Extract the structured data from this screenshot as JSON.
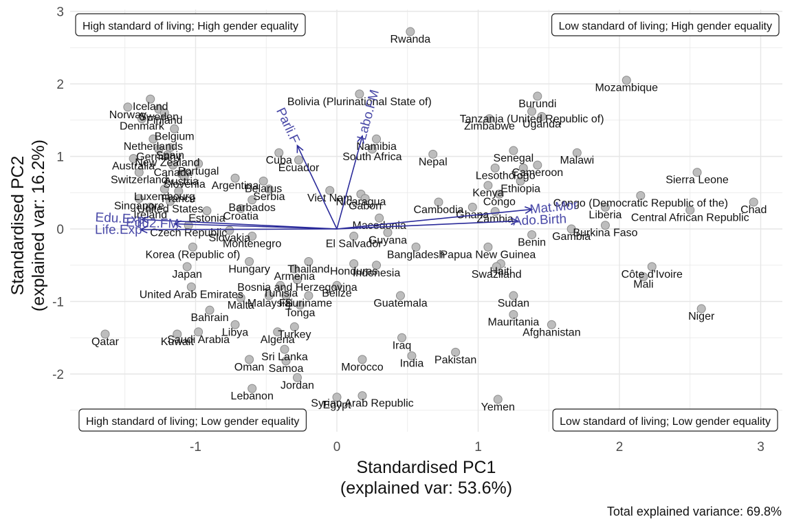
{
  "chart_data": {
    "type": "scatter",
    "subtype": "biplot",
    "xlabel": [
      "Standardised PC1",
      "(explained var: 53.6%)"
    ],
    "ylabel": [
      "Standardised PC2",
      "(explained var: 16.2%)"
    ],
    "caption": "Total explained variance: 69.8%",
    "xlim": [
      -1.9,
      3.15
    ],
    "ylim": [
      -2.78,
      3.0
    ],
    "x_ticks": [
      -1,
      0,
      1,
      2,
      3
    ],
    "y_ticks": [
      -2,
      -1,
      0,
      1,
      2,
      3
    ],
    "x_tick_labels": [
      "-1",
      "0",
      "1",
      "2",
      "3"
    ],
    "y_tick_labels": [
      "-2",
      "-1",
      "0",
      "1",
      "2",
      "3"
    ],
    "grid": true,
    "quadrant_labels": [
      {
        "text": "High standard of living; High gender equality",
        "position": "top-left"
      },
      {
        "text": "Low standard of living; High gender equality",
        "position": "top-right"
      },
      {
        "text": "High standard of living; Low gender equality",
        "position": "bottom-left"
      },
      {
        "text": "Low standard of living; Low gender equality",
        "position": "bottom-right"
      }
    ],
    "vectors": [
      {
        "name": "Edu.Exp",
        "x": -1.38,
        "y": 0.13
      },
      {
        "name": "Edu2.FM",
        "x": -1.15,
        "y": 0.07
      },
      {
        "name": "Life.Exp",
        "x": -1.39,
        "y": -0.01
      },
      {
        "name": "Parli.F",
        "x": -0.28,
        "y": 1.15
      },
      {
        "name": "Labo.FM",
        "x": 0.18,
        "y": 1.28
      },
      {
        "name": "Mat.Mor",
        "x": 1.38,
        "y": 0.27
      },
      {
        "name": "Ado.Birth",
        "x": 1.28,
        "y": 0.11
      }
    ],
    "points": [
      {
        "name": "Rwanda",
        "x": 0.52,
        "y": 2.72
      },
      {
        "name": "Mozambique",
        "x": 2.05,
        "y": 2.05
      },
      {
        "name": "Burundi",
        "x": 1.42,
        "y": 1.83
      },
      {
        "name": "Tanzania (United Republic of)",
        "x": 1.38,
        "y": 1.62
      },
      {
        "name": "Uganda",
        "x": 1.45,
        "y": 1.55
      },
      {
        "name": "Zimbabwe",
        "x": 1.08,
        "y": 1.52
      },
      {
        "name": "Bolivia (Plurinational State of)",
        "x": 0.16,
        "y": 1.86
      },
      {
        "name": "Iceland",
        "x": -1.32,
        "y": 1.79
      },
      {
        "name": "Sweden",
        "x": -1.26,
        "y": 1.65
      },
      {
        "name": "Norway",
        "x": -1.48,
        "y": 1.68
      },
      {
        "name": "Finland",
        "x": -1.22,
        "y": 1.6
      },
      {
        "name": "Denmark",
        "x": -1.38,
        "y": 1.52
      },
      {
        "name": "Belgium",
        "x": -1.15,
        "y": 1.38
      },
      {
        "name": "Netherlands",
        "x": -1.3,
        "y": 1.24
      },
      {
        "name": "Germany",
        "x": -1.26,
        "y": 1.1
      },
      {
        "name": "Spain",
        "x": -1.18,
        "y": 1.12
      },
      {
        "name": "New Zealand",
        "x": -1.2,
        "y": 1.02
      },
      {
        "name": "Australia",
        "x": -1.44,
        "y": 0.97
      },
      {
        "name": "Canada",
        "x": -1.16,
        "y": 0.88
      },
      {
        "name": "Portugal",
        "x": -0.98,
        "y": 0.9
      },
      {
        "name": "Switzerland",
        "x": -1.4,
        "y": 0.78
      },
      {
        "name": "Austria",
        "x": -1.1,
        "y": 0.76
      },
      {
        "name": "Slovenia",
        "x": -1.08,
        "y": 0.72
      },
      {
        "name": "Argentina",
        "x": -0.72,
        "y": 0.7
      },
      {
        "name": "Belarus",
        "x": -0.52,
        "y": 0.66
      },
      {
        "name": "Cuba",
        "x": -0.41,
        "y": 1.05
      },
      {
        "name": "Ecuador",
        "x": -0.27,
        "y": 0.95
      },
      {
        "name": "Namibia",
        "x": 0.28,
        "y": 1.24
      },
      {
        "name": "South Africa",
        "x": 0.25,
        "y": 1.1
      },
      {
        "name": "Nepal",
        "x": 0.68,
        "y": 1.03
      },
      {
        "name": "Senegal",
        "x": 1.25,
        "y": 1.08
      },
      {
        "name": "Malawi",
        "x": 1.7,
        "y": 1.05
      },
      {
        "name": "Lesotho",
        "x": 1.12,
        "y": 0.84
      },
      {
        "name": "Togo",
        "x": 1.32,
        "y": 0.84
      },
      {
        "name": "Cameroon",
        "x": 1.42,
        "y": 0.88
      },
      {
        "name": "Ethiopia",
        "x": 1.3,
        "y": 0.66
      },
      {
        "name": "Sierra Leone",
        "x": 2.55,
        "y": 0.78
      },
      {
        "name": "Kenya",
        "x": 1.07,
        "y": 0.6
      },
      {
        "name": "Congo (Democratic Republic of the)",
        "x": 2.15,
        "y": 0.46
      },
      {
        "name": "Congo",
        "x": 1.15,
        "y": 0.48
      },
      {
        "name": "Chad",
        "x": 2.95,
        "y": 0.37
      },
      {
        "name": "Central African Republic",
        "x": 2.5,
        "y": 0.26
      },
      {
        "name": "Liberia",
        "x": 1.9,
        "y": 0.3
      },
      {
        "name": "Cambodia",
        "x": 0.72,
        "y": 0.37
      },
      {
        "name": "Ghana",
        "x": 0.96,
        "y": 0.3
      },
      {
        "name": "Zambia",
        "x": 1.12,
        "y": 0.24
      },
      {
        "name": "Burkina Faso",
        "x": 1.9,
        "y": 0.05
      },
      {
        "name": "Gambia",
        "x": 1.66,
        "y": 0.0
      },
      {
        "name": "Benin",
        "x": 1.38,
        "y": -0.08
      },
      {
        "name": "Papua New Guinea",
        "x": 1.07,
        "y": -0.25
      },
      {
        "name": "Haiti",
        "x": 1.16,
        "y": -0.48
      },
      {
        "name": "Swaziland",
        "x": 1.13,
        "y": -0.52
      },
      {
        "name": "Côte d'Ivoire",
        "x": 2.23,
        "y": -0.52
      },
      {
        "name": "Mali",
        "x": 2.17,
        "y": -0.66
      },
      {
        "name": "Sudan",
        "x": 1.25,
        "y": -0.92
      },
      {
        "name": "Niger",
        "x": 2.58,
        "y": -1.1
      },
      {
        "name": "Mauritania",
        "x": 1.25,
        "y": -1.18
      },
      {
        "name": "Afghanistan",
        "x": 1.52,
        "y": -1.32
      },
      {
        "name": "Pakistan",
        "x": 0.84,
        "y": -1.7
      },
      {
        "name": "India",
        "x": 0.53,
        "y": -1.75
      },
      {
        "name": "Iraq",
        "x": 0.46,
        "y": -1.5
      },
      {
        "name": "Morocco",
        "x": 0.18,
        "y": -1.8
      },
      {
        "name": "Guatemala",
        "x": 0.45,
        "y": -0.92
      },
      {
        "name": "Yemen",
        "x": 1.14,
        "y": -2.35
      },
      {
        "name": "Egypt",
        "x": 0.0,
        "y": -2.32
      },
      {
        "name": "Syrian Arab Republic",
        "x": 0.18,
        "y": -2.3
      },
      {
        "name": "Jordan",
        "x": -0.28,
        "y": -2.05
      },
      {
        "name": "Lebanon",
        "x": -0.6,
        "y": -2.2
      },
      {
        "name": "Samoa",
        "x": -0.36,
        "y": -1.82
      },
      {
        "name": "Oman",
        "x": -0.62,
        "y": -1.8
      },
      {
        "name": "Sri Lanka",
        "x": -0.37,
        "y": -1.66
      },
      {
        "name": "Algeria",
        "x": -0.42,
        "y": -1.42
      },
      {
        "name": "Turkey",
        "x": -0.3,
        "y": -1.35
      },
      {
        "name": "Libya",
        "x": -0.72,
        "y": -1.32
      },
      {
        "name": "Saudi Arabia",
        "x": -0.98,
        "y": -1.42
      },
      {
        "name": "Kuwait",
        "x": -1.13,
        "y": -1.45
      },
      {
        "name": "Qatar",
        "x": -1.64,
        "y": -1.45
      },
      {
        "name": "Bahrain",
        "x": -0.9,
        "y": -1.12
      },
      {
        "name": "Tonga",
        "x": -0.26,
        "y": -1.05
      },
      {
        "name": "Malta",
        "x": -0.68,
        "y": -0.95
      },
      {
        "name": "Malaysia",
        "x": -0.48,
        "y": -0.92
      },
      {
        "name": "Fiji",
        "x": -0.36,
        "y": -0.92
      },
      {
        "name": "Suriname",
        "x": -0.2,
        "y": -0.92
      },
      {
        "name": "Tunisia",
        "x": -0.4,
        "y": -0.78
      },
      {
        "name": "Belize",
        "x": 0.0,
        "y": -0.78
      },
      {
        "name": "United Arab Emirates",
        "x": -1.03,
        "y": -0.8
      },
      {
        "name": "Japan",
        "x": -1.06,
        "y": -0.52
      },
      {
        "name": "Bosnia and Herzegovina",
        "x": -0.28,
        "y": -0.7
      },
      {
        "name": "Indonesia",
        "x": 0.28,
        "y": -0.5
      },
      {
        "name": "Armenia",
        "x": -0.3,
        "y": -0.55
      },
      {
        "name": "Hungary",
        "x": -0.62,
        "y": -0.45
      },
      {
        "name": "Korea (Republic of)",
        "x": -1.02,
        "y": -0.25
      },
      {
        "name": "Montenegro",
        "x": -0.6,
        "y": -0.1
      },
      {
        "name": "Bangladesh",
        "x": 0.56,
        "y": -0.25
      },
      {
        "name": "Slovakia",
        "x": -0.76,
        "y": -0.02
      },
      {
        "name": "Czech Republic",
        "x": -1.05,
        "y": 0.05
      },
      {
        "name": "Luxembourg",
        "x": -1.22,
        "y": 0.55
      },
      {
        "name": "France",
        "x": -1.12,
        "y": 0.52
      },
      {
        "name": "Singapore",
        "x": -1.4,
        "y": 0.42
      },
      {
        "name": "United States",
        "x": -1.18,
        "y": 0.38
      },
      {
        "name": "Ireland",
        "x": -1.32,
        "y": 0.3
      },
      {
        "name": "Estonia",
        "x": -0.92,
        "y": 0.25
      },
      {
        "name": "Serbia",
        "x": -0.48,
        "y": 0.55
      },
      {
        "name": "Croatia",
        "x": -0.68,
        "y": 0.28
      },
      {
        "name": "Barbados",
        "x": -0.6,
        "y": 0.4
      },
      {
        "name": "Viet Nam",
        "x": -0.05,
        "y": 0.53
      },
      {
        "name": "Nicaragua",
        "x": 0.17,
        "y": 0.48
      },
      {
        "name": "Gabon",
        "x": 0.2,
        "y": 0.42
      },
      {
        "name": "Macedonia",
        "x": 0.3,
        "y": 0.15
      },
      {
        "name": "Guyana",
        "x": 0.36,
        "y": -0.05
      },
      {
        "name": "El Salvador",
        "x": 0.12,
        "y": -0.1
      },
      {
        "name": "Thailand",
        "x": -0.2,
        "y": -0.45
      },
      {
        "name": "Honduras",
        "x": 0.12,
        "y": -0.48
      }
    ]
  }
}
